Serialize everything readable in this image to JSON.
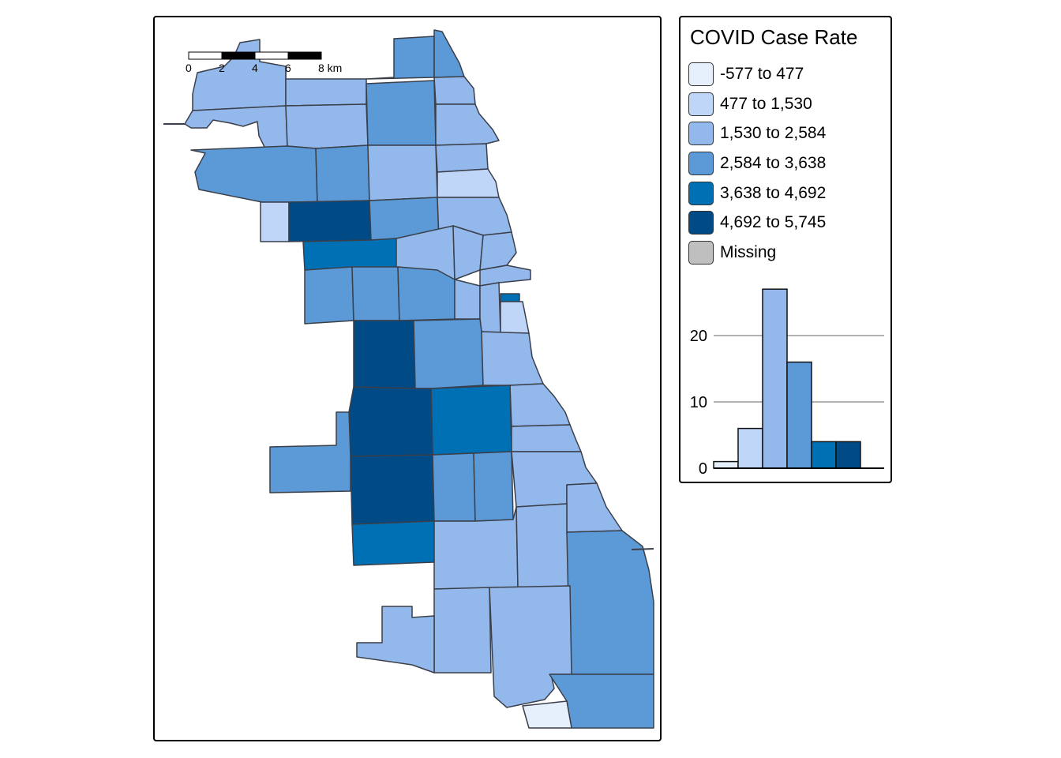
{
  "legend": {
    "title": "COVID Case Rate",
    "classes": [
      {
        "label": "-577 to 477",
        "color": "#e6f0fd"
      },
      {
        "label": "477 to 1,530",
        "color": "#bfd6f8"
      },
      {
        "label": "1,530 to 2,584",
        "color": "#93b9ec"
      },
      {
        "label": "2,584 to 3,638",
        "color": "#5b9ad6"
      },
      {
        "label": "3,638 to 4,692",
        "color": "#0070b5"
      },
      {
        "label": "4,692 to 5,745",
        "color": "#004a85"
      },
      {
        "label": "Missing",
        "color": "#bfbfbf"
      }
    ]
  },
  "scale_bar": {
    "ticks": [
      "0",
      "2",
      "4",
      "6",
      "8 km"
    ]
  },
  "chart_data": {
    "type": "bar",
    "categories": [
      "-577 to 477",
      "477 to 1,530",
      "1,530 to 2,584",
      "2,584 to 3,638",
      "3,638 to 4,692",
      "4,692 to 5,745"
    ],
    "values": [
      1,
      6,
      27,
      16,
      4,
      4
    ],
    "colors": [
      "#e6f0fd",
      "#bfd6f8",
      "#93b9ec",
      "#5b9ad6",
      "#0070b5",
      "#004a85"
    ],
    "yticks": [
      0,
      10,
      20
    ],
    "ylim": [
      0,
      30
    ],
    "grid": true
  }
}
